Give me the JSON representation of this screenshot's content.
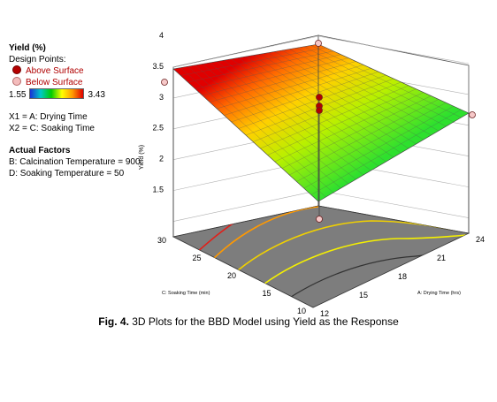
{
  "legend": {
    "title": "Yield (%)",
    "design_points_label": "Design Points:",
    "above_label": "Above Surface",
    "below_label": "Below Surface",
    "min_label": "1.55",
    "max_label": "3.43",
    "x1_label": "X1 = A: Drying Time",
    "x2_label": "X2 = C: Soaking Time",
    "actual_factors_label": "Actual Factors",
    "factor_b": "B: Calcination Temperature = 900",
    "factor_d": "D: Soaking Temperature = 50"
  },
  "caption": {
    "prefix": "Fig. 4.",
    "text": "3D Plots for the BBD Model using Yield as the Response"
  },
  "chart_data": {
    "type": "surface",
    "x_label": "A: Drying Time (hrs)",
    "y_label": "C: Soaking Time (min)",
    "z_label": "Yield (%)",
    "x_ticks": [
      "12",
      "15",
      "18",
      "21",
      "24"
    ],
    "y_ticks": [
      "10",
      "15",
      "20",
      "25",
      "30"
    ],
    "z_ticks": [
      "1.5",
      "2",
      "2.5",
      "3",
      "3.5",
      "4"
    ],
    "x_range": [
      12,
      24
    ],
    "y_range": [
      10,
      30
    ],
    "z_range": [
      1.55,
      3.43
    ],
    "surface_corners": [
      {
        "x": 12,
        "y": 10,
        "z": 1.55
      },
      {
        "x": 24,
        "y": 10,
        "z": 3.0
      },
      {
        "x": 12,
        "y": 30,
        "z": 3.43
      },
      {
        "x": 24,
        "y": 30,
        "z": 3.42
      }
    ],
    "design_points": [
      {
        "x": 12,
        "y": 30,
        "z": 3.3,
        "position": "below"
      },
      {
        "x": 24,
        "y": 30,
        "z": 3.9,
        "position": "below"
      },
      {
        "x": 24,
        "y": 10,
        "z": 2.8,
        "position": "below"
      },
      {
        "x": 18,
        "y": 20,
        "z": 2.9,
        "position": "above"
      },
      {
        "x": 18,
        "y": 20,
        "z": 2.75,
        "position": "above"
      },
      {
        "x": 18,
        "y": 20,
        "z": 2.7,
        "position": "above"
      },
      {
        "x": 18,
        "y": 20,
        "z": 1.3,
        "position": "below"
      }
    ],
    "color_scale": [
      "#1a2fd6",
      "#00cc00",
      "#ffff00",
      "#ff9900",
      "#e00000"
    ],
    "grid": true
  }
}
